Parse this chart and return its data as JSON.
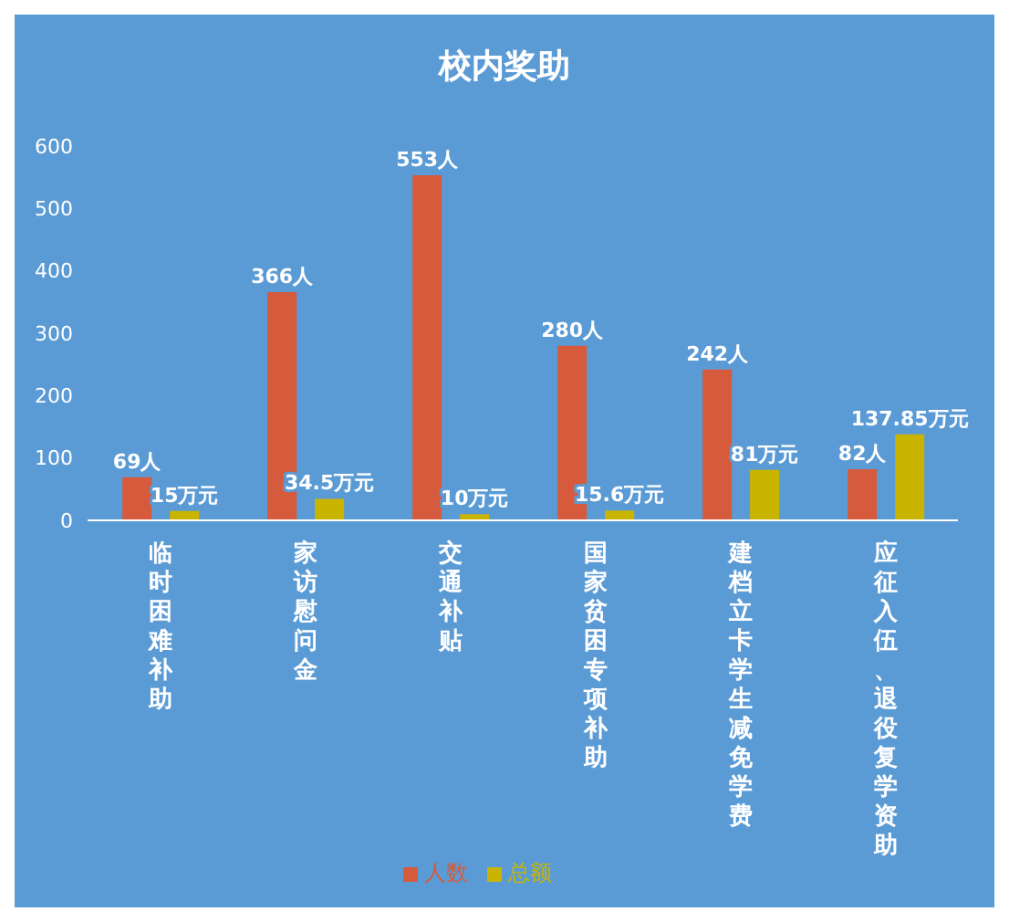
{
  "chart_data": {
    "type": "bar",
    "title": "校内奖助",
    "categories": [
      "临时困难补助",
      "家访慰问金",
      "交通补贴",
      "国家贫困专项补助",
      "建档立卡学生减免学费",
      "应征入伍、退役复学资助"
    ],
    "series": [
      {
        "name": "人数",
        "color": "#d65a3c",
        "values": [
          69,
          366,
          553,
          280,
          242,
          82
        ],
        "value_labels": [
          "69人",
          "366人",
          "553人",
          "280人",
          "242人",
          "82人"
        ]
      },
      {
        "name": "总额",
        "color": "#c9b500",
        "values": [
          15,
          34.5,
          10,
          15.6,
          81,
          137.85
        ],
        "value_labels": [
          "15万元",
          "34.5万元",
          "10万元",
          "15.6万元",
          "81万元",
          "137.85万元"
        ]
      }
    ],
    "ylim": [
      0,
      600
    ],
    "yticks": [
      0,
      100,
      200,
      300,
      400,
      500,
      600
    ],
    "grid": false,
    "legend": "bottom"
  }
}
